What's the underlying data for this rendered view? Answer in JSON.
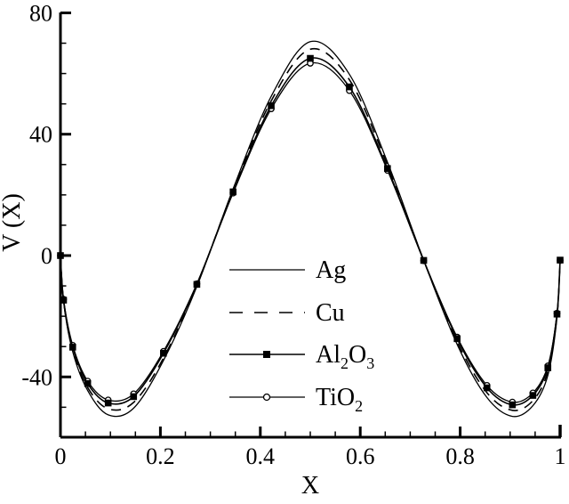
{
  "chart_data": {
    "type": "line",
    "title": "",
    "xlabel": "X",
    "ylabel": "V (X)",
    "xlim": [
      0,
      1
    ],
    "ylim": [
      -60,
      80
    ],
    "grid": false,
    "background_color": "#ffffff",
    "foreground_color": "#000000",
    "legend_position": "inside, left-center of plot",
    "x_axis": {
      "label": "X",
      "major_ticks": [
        {
          "value": 0,
          "label": "0"
        },
        {
          "value": 0.2,
          "label": "0.2"
        },
        {
          "value": 0.4,
          "label": "0.4"
        },
        {
          "value": 0.6,
          "label": "0.6"
        },
        {
          "value": 0.8,
          "label": "0.8"
        },
        {
          "value": 1,
          "label": "1"
        }
      ],
      "minor_ticks": [
        0.05,
        0.1,
        0.15,
        0.25,
        0.3,
        0.35,
        0.45,
        0.5,
        0.55,
        0.65,
        0.7,
        0.75,
        0.85,
        0.9,
        0.95
      ]
    },
    "y_axis": {
      "label": "V (X)",
      "major_ticks": [
        {
          "value": 80,
          "label": "80"
        },
        {
          "value": 40,
          "label": "40"
        },
        {
          "value": 0,
          "label": "0"
        },
        {
          "value": -40,
          "label": "-40"
        }
      ],
      "minor_ticks": [
        70,
        60,
        50,
        30,
        20,
        10,
        -10,
        -20,
        -30,
        -50
      ]
    },
    "x": [
      0,
      0.0062,
      0.0245,
      0.0545,
      0.0955,
      0.1464,
      0.2061,
      0.273,
      0.3455,
      0.4218,
      0.5,
      0.5782,
      0.6545,
      0.727,
      0.7939,
      0.8536,
      0.9045,
      0.9455,
      0.9755,
      0.9938,
      1
    ],
    "series": [
      {
        "name": "Ag",
        "label": "Ag",
        "label_parts": [
          {
            "t": "Ag"
          }
        ],
        "line": "solid",
        "line_width": 1.3,
        "marker": "none",
        "values": [
          0,
          -15.3,
          -31.7,
          -44.5,
          -52.5,
          -50.3,
          -34.6,
          -10.2,
          22.0,
          52.5,
          70.5,
          59.8,
          30.8,
          -1.6,
          -29.3,
          -46.8,
          -53.0,
          -49.5,
          -39.5,
          -20.5,
          -1.5
        ]
      },
      {
        "name": "Cu",
        "label": "Cu",
        "label_parts": [
          {
            "t": "Cu"
          }
        ],
        "line": "dashed",
        "line_width": 1.6,
        "marker": "none",
        "values": [
          0,
          -15.0,
          -31.0,
          -43.5,
          -50.5,
          -48.4,
          -33.8,
          -9.8,
          21.5,
          51.0,
          68.0,
          58.0,
          29.8,
          -1.6,
          -28.4,
          -45.2,
          -51.0,
          -47.8,
          -38.2,
          -19.9,
          -1.5
        ]
      },
      {
        "name": "Al2O3",
        "label": "Al2O3",
        "label_parts": [
          {
            "t": "Al"
          },
          {
            "t": "2",
            "sub": true
          },
          {
            "t": "O"
          },
          {
            "t": "3",
            "sub": true
          }
        ],
        "line": "solid",
        "line_width": 1.6,
        "marker": "square-filled",
        "values": [
          0,
          -14.7,
          -30.2,
          -42.2,
          -48.6,
          -46.5,
          -32.2,
          -9.5,
          21.0,
          49.4,
          65.0,
          55.6,
          28.7,
          -1.6,
          -27.4,
          -43.6,
          -49.2,
          -46.1,
          -37.0,
          -19.3,
          -1.5
        ]
      },
      {
        "name": "TiO2",
        "label": "TiO2",
        "label_parts": [
          {
            "t": "TiO"
          },
          {
            "t": "2",
            "sub": true
          }
        ],
        "line": "solid",
        "line_width": 1.3,
        "marker": "circle-open",
        "values": [
          0,
          -14.4,
          -29.6,
          -41.4,
          -47.6,
          -45.6,
          -31.6,
          -9.3,
          20.6,
          48.4,
          63.4,
          54.4,
          28.1,
          -1.7,
          -26.9,
          -42.8,
          -48.3,
          -45.3,
          -36.4,
          -19.0,
          -1.6
        ]
      }
    ]
  }
}
